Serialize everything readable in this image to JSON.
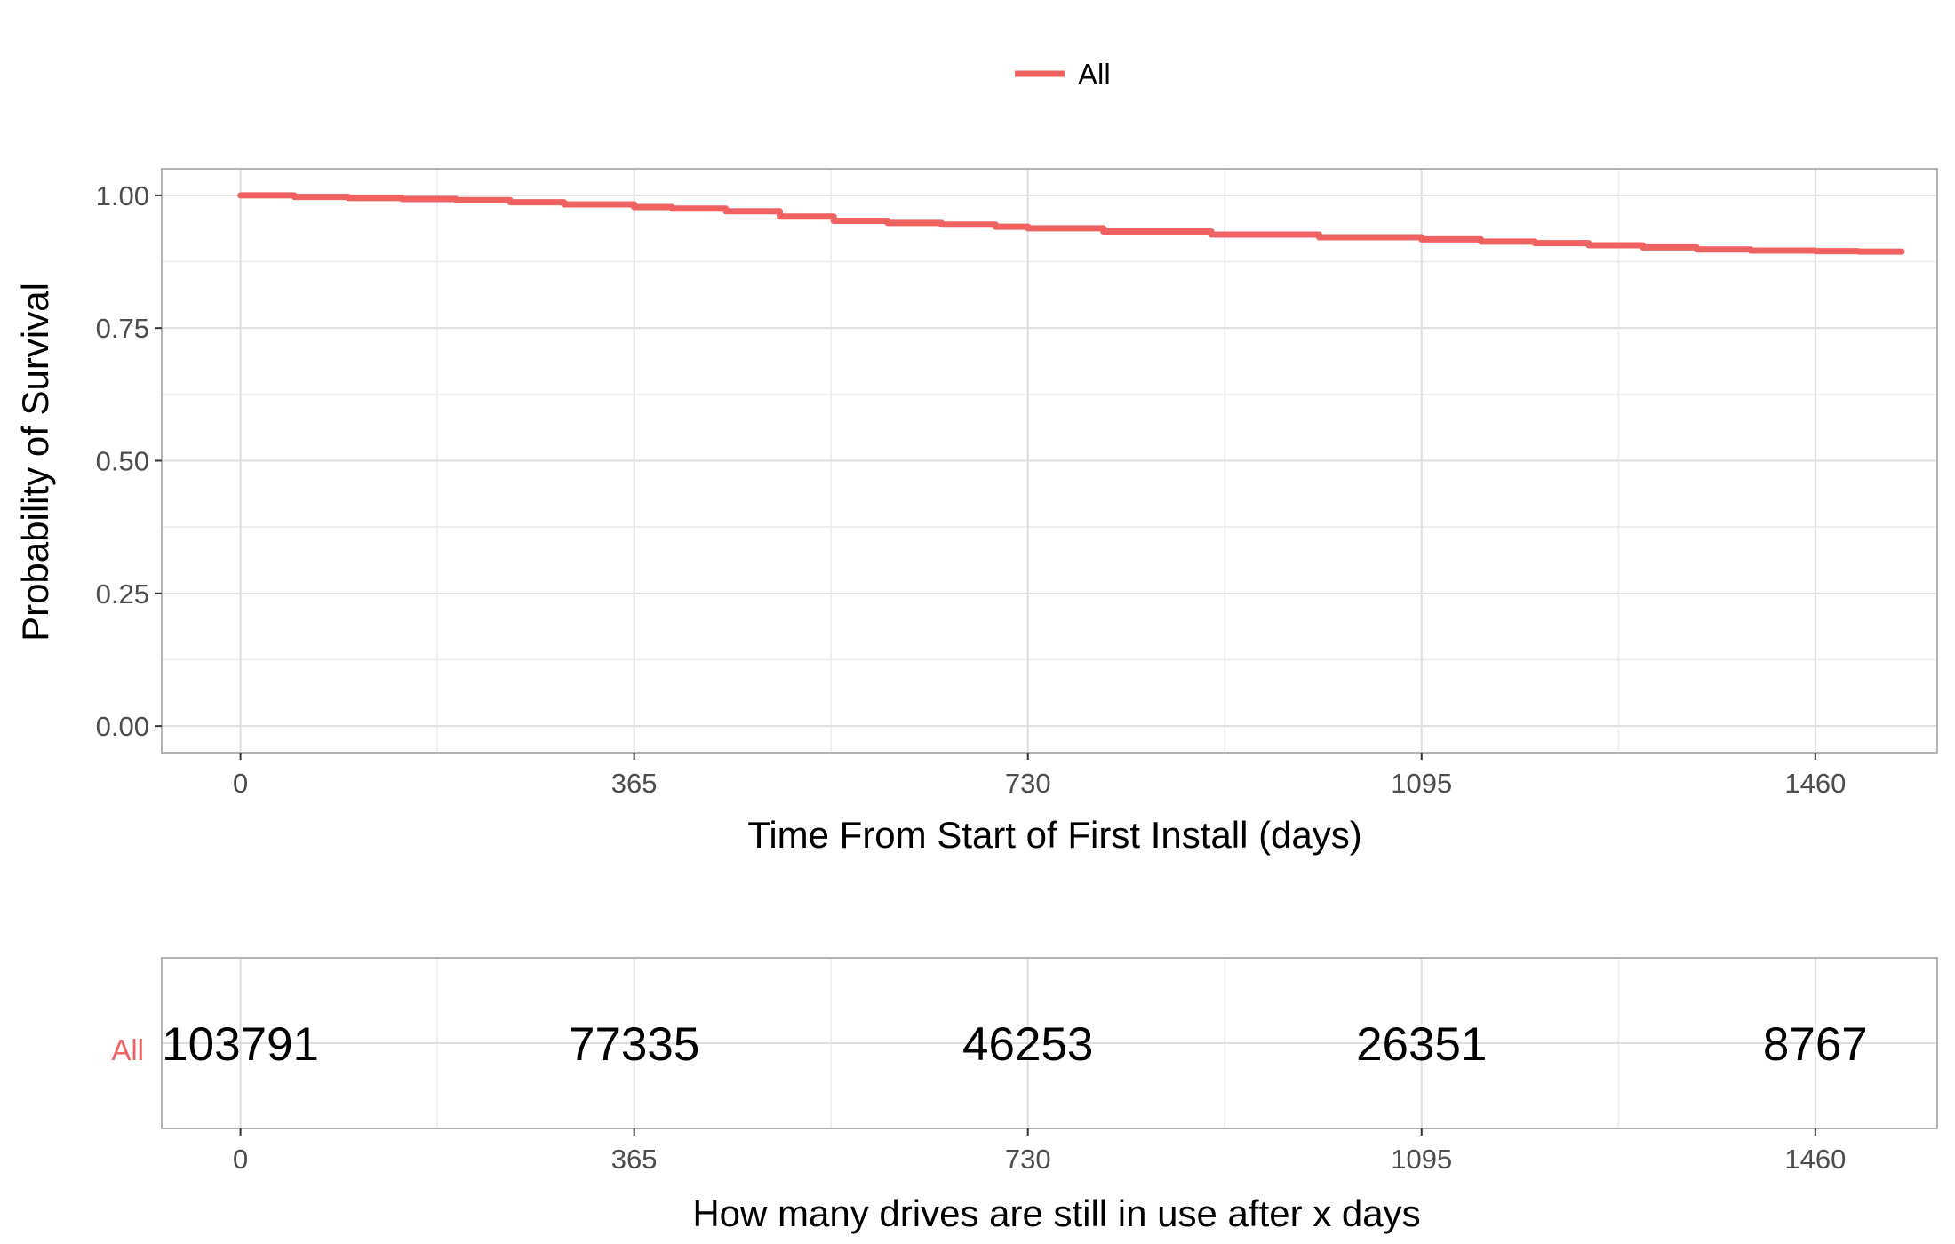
{
  "chart_data": [
    {
      "type": "line",
      "legend": {
        "position": "top",
        "entries": [
          {
            "label": "All",
            "color": "#F06262"
          }
        ]
      },
      "xlabel": "Time From Start of First Install (days)",
      "ylabel": "Probability of Survival",
      "xlim": [
        -73,
        1573
      ],
      "ylim": [
        -0.05,
        1.05
      ],
      "xticks": [
        0,
        365,
        730,
        1095,
        1460
      ],
      "xtick_labels": [
        "0",
        "365",
        "730",
        "1095",
        "1460"
      ],
      "yticks": [
        0,
        0.25,
        0.5,
        0.75,
        1.0
      ],
      "ytick_labels": [
        "0.00",
        "0.25",
        "0.50",
        "0.75",
        "1.00"
      ],
      "grid": true,
      "series": [
        {
          "name": "All",
          "color": "#F06262",
          "x": [
            0,
            50,
            100,
            150,
            200,
            250,
            300,
            365,
            400,
            450,
            500,
            550,
            600,
            650,
            700,
            730,
            800,
            900,
            1000,
            1095,
            1150,
            1200,
            1250,
            1300,
            1350,
            1400,
            1460,
            1500,
            1540
          ],
          "y": [
            1.0,
            0.997,
            0.995,
            0.993,
            0.991,
            0.987,
            0.983,
            0.978,
            0.975,
            0.97,
            0.96,
            0.952,
            0.948,
            0.945,
            0.941,
            0.938,
            0.932,
            0.926,
            0.921,
            0.917,
            0.913,
            0.91,
            0.906,
            0.902,
            0.898,
            0.896,
            0.895,
            0.894,
            0.894
          ]
        }
      ]
    },
    {
      "type": "table",
      "xlabel": "How many drives are still in use after x days",
      "xticks": [
        0,
        365,
        730,
        1095,
        1460
      ],
      "xtick_labels": [
        "0",
        "365",
        "730",
        "1095",
        "1460"
      ],
      "rows": [
        {
          "label": "All",
          "color": "#F06262",
          "values": [
            "103791",
            "77335",
            "46253",
            "26351",
            "8767"
          ]
        }
      ]
    }
  ]
}
